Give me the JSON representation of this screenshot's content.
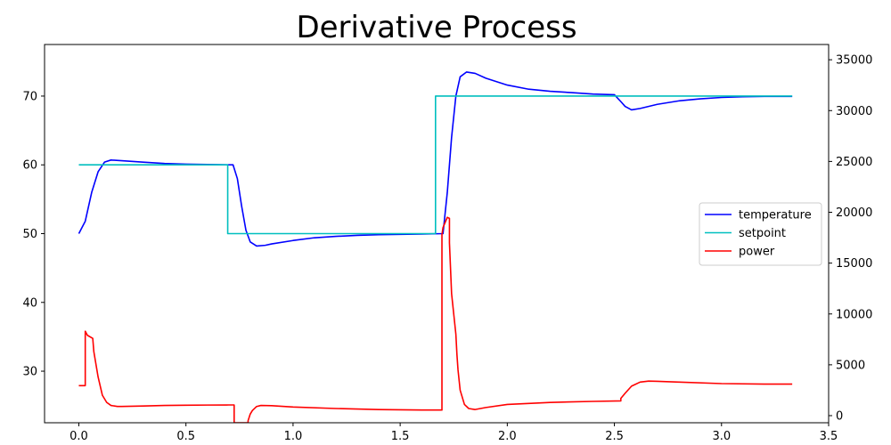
{
  "chart_data": {
    "type": "line",
    "title": "Derivative Process",
    "xlabel": "",
    "ylabel": "",
    "xlim": [
      -0.16,
      3.5
    ],
    "ylim": [
      22.5,
      77.5
    ],
    "y2lim": [
      -700,
      36500
    ],
    "grid": false,
    "legend_position": "center-right",
    "x_ticks": [
      0.0,
      0.5,
      1.0,
      1.5,
      2.0,
      2.5,
      3.0,
      3.5
    ],
    "x_tick_labels": [
      "0.0",
      "0.5",
      "1.0",
      "1.5",
      "2.0",
      "2.5",
      "3.0",
      "3.5"
    ],
    "y_ticks": [
      30,
      40,
      50,
      60,
      70
    ],
    "y_tick_labels": [
      "30",
      "40",
      "50",
      "60",
      "70"
    ],
    "y2_ticks": [
      0,
      5000,
      10000,
      15000,
      20000,
      25000,
      30000,
      35000
    ],
    "y2_tick_labels": [
      "0",
      "5000",
      "10000",
      "15000",
      "20000",
      "25000",
      "30000",
      "35000"
    ],
    "series": [
      {
        "name": "temperature",
        "color": "#0000ff",
        "axis": "left",
        "x": [
          0.0,
          0.03,
          0.06,
          0.09,
          0.12,
          0.15,
          0.2,
          0.3,
          0.4,
          0.5,
          0.6,
          0.72,
          0.74,
          0.76,
          0.78,
          0.8,
          0.83,
          0.87,
          0.9,
          1.0,
          1.1,
          1.2,
          1.3,
          1.4,
          1.5,
          1.6,
          1.7,
          1.72,
          1.74,
          1.76,
          1.78,
          1.81,
          1.85,
          1.9,
          2.0,
          2.1,
          2.2,
          2.3,
          2.4,
          2.5,
          2.53,
          2.55,
          2.58,
          2.62,
          2.7,
          2.8,
          2.9,
          3.0,
          3.1,
          3.2,
          3.33
        ],
        "y": [
          50.0,
          51.8,
          56.0,
          59.0,
          60.4,
          60.7,
          60.6,
          60.4,
          60.2,
          60.1,
          60.05,
          60.0,
          58.0,
          54.0,
          50.5,
          48.8,
          48.2,
          48.3,
          48.5,
          49.0,
          49.4,
          49.6,
          49.75,
          49.85,
          49.9,
          49.95,
          50.0,
          56.0,
          64.0,
          70.0,
          72.8,
          73.5,
          73.3,
          72.6,
          71.6,
          71.0,
          70.7,
          70.5,
          70.3,
          70.2,
          69.2,
          68.5,
          68.0,
          68.2,
          68.8,
          69.3,
          69.6,
          69.8,
          69.9,
          69.95,
          69.95
        ]
      },
      {
        "name": "setpoint",
        "color": "#00bfbf",
        "axis": "left",
        "x": [
          0.0,
          0.695,
          0.695,
          1.665,
          1.665,
          3.33
        ],
        "y": [
          60,
          60,
          50,
          50,
          70,
          70
        ]
      },
      {
        "name": "power",
        "color": "#ff0000",
        "axis": "right",
        "x": [
          0.0,
          0.03,
          0.03,
          0.04,
          0.065,
          0.07,
          0.09,
          0.11,
          0.13,
          0.15,
          0.18,
          0.2,
          0.3,
          0.4,
          0.5,
          0.6,
          0.7,
          0.725,
          0.725,
          0.79,
          0.79,
          0.8,
          0.81,
          0.83,
          0.85,
          0.9,
          1.0,
          1.2,
          1.4,
          1.6,
          1.695,
          1.695,
          1.7,
          1.72,
          1.73,
          1.73,
          1.74,
          1.76,
          1.765,
          1.77,
          1.78,
          1.8,
          1.82,
          1.85,
          1.9,
          2.0,
          2.2,
          2.4,
          2.53,
          2.53,
          2.55,
          2.58,
          2.62,
          2.66,
          2.7,
          2.8,
          3.0,
          3.2,
          3.33
        ],
        "y": [
          2950,
          2950,
          8300,
          7900,
          7600,
          6300,
          3800,
          2000,
          1300,
          1000,
          900,
          900,
          950,
          1000,
          1020,
          1040,
          1050,
          1050,
          -700,
          -700,
          -500,
          150,
          500,
          900,
          1000,
          980,
          850,
          700,
          600,
          550,
          550,
          17800,
          18500,
          19500,
          19400,
          17000,
          12000,
          8000,
          6000,
          4500,
          2500,
          1100,
          700,
          600,
          800,
          1100,
          1300,
          1400,
          1450,
          1700,
          2200,
          2900,
          3300,
          3400,
          3380,
          3300,
          3150,
          3100,
          3100
        ]
      }
    ]
  }
}
